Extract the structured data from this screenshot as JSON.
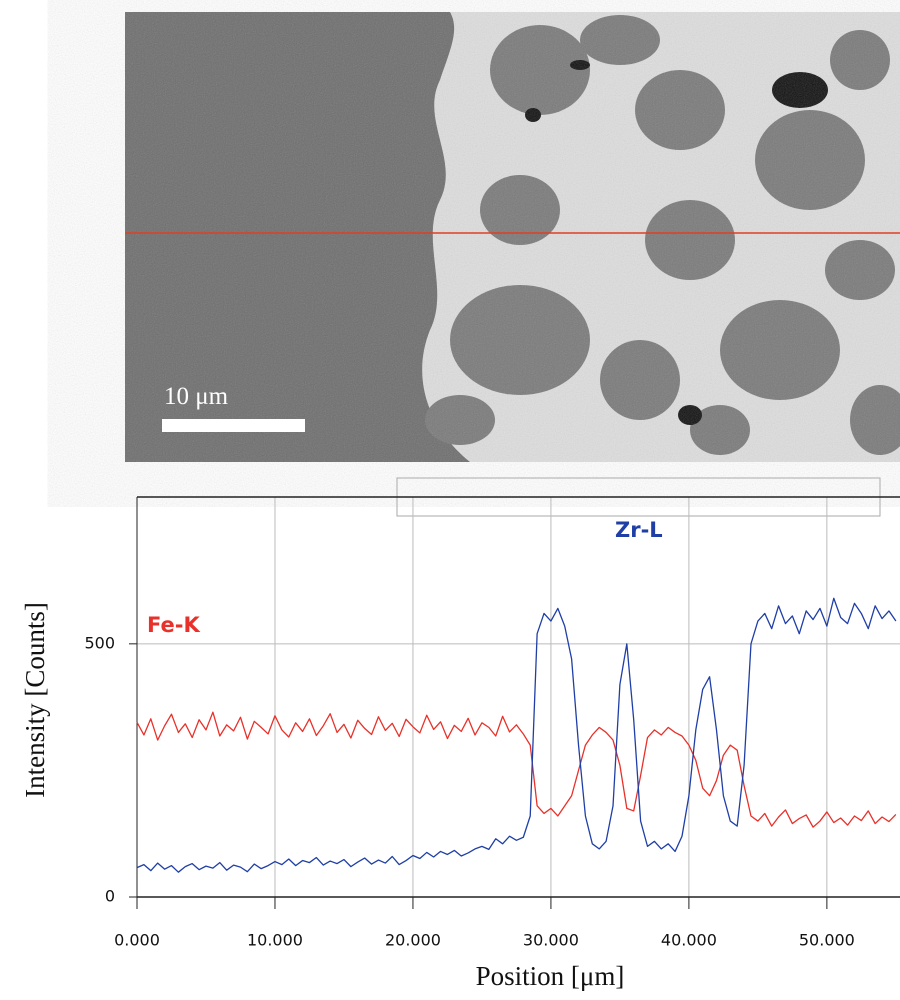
{
  "image": {
    "scale_bar": "10 μm"
  },
  "chart_data": {
    "type": "line",
    "xlabel": "Position [μm]",
    "ylabel": "Intensity [Counts]",
    "x": [
      0,
      0.5,
      1,
      1.5,
      2,
      2.5,
      3,
      3.5,
      4,
      4.5,
      5,
      5.5,
      6,
      6.5,
      7,
      7.5,
      8,
      8.5,
      9,
      9.5,
      10,
      10.5,
      11,
      11.5,
      12,
      12.5,
      13,
      13.5,
      14,
      14.5,
      15,
      15.5,
      16,
      16.5,
      17,
      17.5,
      18,
      18.5,
      19,
      19.5,
      20,
      20.5,
      21,
      21.5,
      22,
      22.5,
      23,
      23.5,
      24,
      24.5,
      25,
      25.5,
      26,
      26.5,
      27,
      27.5,
      28,
      28.5,
      29,
      29.5,
      30,
      30.5,
      31,
      31.5,
      32,
      32.5,
      33,
      33.5,
      34,
      34.5,
      35,
      35.5,
      36,
      36.5,
      37,
      37.5,
      38,
      38.5,
      39,
      39.5,
      40,
      40.5,
      41,
      41.5,
      42,
      42.5,
      43,
      43.5,
      44,
      44.5,
      45,
      45.5,
      46,
      46.5,
      47,
      47.5,
      48,
      48.5,
      49,
      49.5,
      50,
      50.5,
      51,
      51.5,
      52,
      52.5,
      53,
      53.5,
      54,
      54.5,
      55
    ],
    "series": [
      {
        "name": "Fe-K",
        "color": "#e8312a",
        "values": [
          345,
          320,
          352,
          310,
          338,
          361,
          325,
          342,
          315,
          350,
          330,
          365,
          318,
          340,
          328,
          355,
          312,
          347,
          335,
          322,
          358,
          330,
          316,
          344,
          327,
          352,
          319,
          338,
          362,
          325,
          341,
          314,
          349,
          333,
          321,
          356,
          329,
          343,
          317,
          351,
          336,
          324,
          359,
          331,
          346,
          313,
          339,
          327,
          353,
          320,
          344,
          335,
          318,
          357,
          326,
          340,
          322,
          300,
          180,
          165,
          175,
          160,
          180,
          200,
          250,
          300,
          320,
          335,
          325,
          310,
          260,
          175,
          170,
          240,
          315,
          330,
          320,
          335,
          325,
          318,
          300,
          270,
          215,
          200,
          230,
          280,
          300,
          290,
          220,
          160,
          150,
          165,
          140,
          158,
          172,
          145,
          155,
          162,
          138,
          150,
          168,
          147,
          156,
          142,
          160,
          151,
          170,
          145,
          158,
          149,
          163
        ]
      },
      {
        "name": "Zr-L",
        "color": "#1f3fa6",
        "values": [
          58,
          64,
          52,
          67,
          55,
          62,
          49,
          60,
          66,
          54,
          61,
          57,
          68,
          53,
          63,
          59,
          50,
          65,
          56,
          62,
          70,
          64,
          75,
          62,
          72,
          68,
          78,
          63,
          71,
          66,
          74,
          60,
          69,
          77,
          65,
          73,
          67,
          80,
          64,
          72,
          82,
          76,
          88,
          79,
          90,
          84,
          92,
          81,
          87,
          95,
          100,
          94,
          115,
          105,
          120,
          112,
          118,
          160,
          520,
          560,
          545,
          570,
          535,
          470,
          300,
          160,
          105,
          95,
          110,
          180,
          420,
          500,
          350,
          150,
          100,
          110,
          95,
          105,
          90,
          120,
          200,
          330,
          410,
          435,
          330,
          200,
          150,
          140,
          260,
          500,
          545,
          560,
          530,
          575,
          540,
          555,
          520,
          565,
          548,
          570,
          535,
          590,
          552,
          540,
          580,
          560,
          530,
          575,
          550,
          565,
          545
        ]
      }
    ],
    "xlim": [
      0,
      55.3
    ],
    "ylim": [
      0,
      790
    ],
    "xticks": [
      {
        "value": 0,
        "label": "0.000"
      },
      {
        "value": 10,
        "label": "10.000"
      },
      {
        "value": 20,
        "label": "20.000"
      },
      {
        "value": 30,
        "label": "30.000"
      },
      {
        "value": 40,
        "label": "40.000"
      },
      {
        "value": 50,
        "label": "50.000"
      }
    ],
    "yticks": [
      0,
      500
    ],
    "grid": true
  }
}
